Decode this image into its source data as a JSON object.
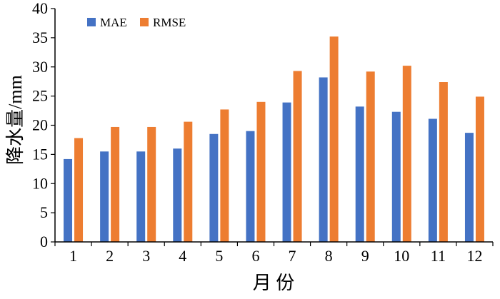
{
  "chart_data": {
    "type": "bar",
    "xlabel": "月 份",
    "ylabel": "降水量/mm",
    "ylim": [
      0,
      40
    ],
    "yticks": [
      0,
      5,
      10,
      15,
      20,
      25,
      30,
      35,
      40
    ],
    "categories": [
      "1",
      "2",
      "3",
      "4",
      "5",
      "6",
      "7",
      "8",
      "9",
      "10",
      "11",
      "12"
    ],
    "grid": false,
    "legend_position": "top-left",
    "series": [
      {
        "name": "MAE",
        "color": "#4472C4",
        "values": [
          14.2,
          15.5,
          15.5,
          16.0,
          18.5,
          19.0,
          23.9,
          28.2,
          23.2,
          22.3,
          21.1,
          18.7
        ]
      },
      {
        "name": "RMSE",
        "color": "#ED7D31",
        "values": [
          17.8,
          19.7,
          19.7,
          20.6,
          22.7,
          24.0,
          29.3,
          35.2,
          29.2,
          30.2,
          27.4,
          24.9
        ]
      }
    ]
  }
}
